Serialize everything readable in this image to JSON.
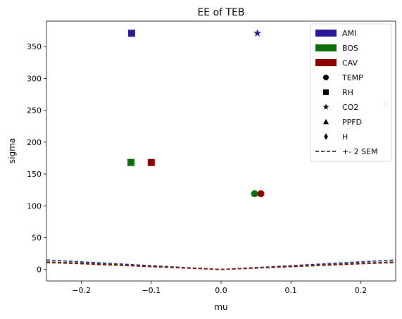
{
  "chart_data": {
    "type": "scatter",
    "title": "EE of TEB",
    "xlabel": "mu",
    "ylabel": "sigma",
    "xlim": [
      -0.25,
      0.25
    ],
    "ylim": [
      -18,
      390
    ],
    "xticks": [
      -0.2,
      -0.1,
      0.0,
      0.1,
      0.2
    ],
    "xtick_labels": [
      "−0.2",
      "−0.1",
      "0.0",
      "0.1",
      "0.2"
    ],
    "yticks": [
      0,
      50,
      100,
      150,
      200,
      250,
      300,
      350
    ],
    "ytick_labels": [
      "0",
      "50",
      "100",
      "150",
      "200",
      "250",
      "300",
      "350"
    ],
    "grid": false,
    "legend_position": "top-right",
    "groups": [
      {
        "name": "AMI",
        "color": "#2a1a9a"
      },
      {
        "name": "BOS",
        "color": "#0a6e0a"
      },
      {
        "name": "CAV",
        "color": "#8b0000"
      }
    ],
    "markers": [
      {
        "name": "TEMP",
        "shape": "circle"
      },
      {
        "name": "RH",
        "shape": "square"
      },
      {
        "name": "CO2",
        "shape": "star"
      },
      {
        "name": "PPFD",
        "shape": "triangle"
      },
      {
        "name": "H",
        "shape": "diamond"
      }
    ],
    "sem_label": "+- 2 SEM",
    "points": [
      {
        "group": "AMI",
        "marker": "RH",
        "x": -0.128,
        "y": 371
      },
      {
        "group": "AMI",
        "marker": "CO2",
        "x": 0.052,
        "y": 371
      },
      {
        "group": "AMI",
        "marker": "TEMP",
        "x": 0.236,
        "y": 261,
        "color": "#d6d2ec"
      },
      {
        "group": "BOS",
        "marker": "RH",
        "x": -0.129,
        "y": 168
      },
      {
        "group": "CAV",
        "marker": "RH",
        "x": -0.1,
        "y": 168
      },
      {
        "group": "BOS",
        "marker": "TEMP",
        "x": 0.048,
        "y": 119
      },
      {
        "group": "CAV",
        "marker": "TEMP",
        "x": 0.057,
        "y": 119
      }
    ],
    "sem_lines": [
      {
        "group": "AMI",
        "x": [
          -0.25,
          -0.2,
          -0.1,
          0.0,
          0.1,
          0.2,
          0.25
        ],
        "y": [
          15,
          12,
          6,
          0,
          6,
          12,
          15
        ]
      },
      {
        "group": "BOS",
        "x": [
          -0.25,
          -0.2,
          -0.1,
          0.0,
          0.1,
          0.2,
          0.25
        ],
        "y": [
          12,
          10,
          5,
          0,
          5,
          10,
          12
        ]
      },
      {
        "group": "CAV",
        "x": [
          -0.25,
          -0.2,
          -0.1,
          0.0,
          0.1,
          0.2,
          0.25
        ],
        "y": [
          11,
          9,
          4.5,
          0,
          4.5,
          9,
          11
        ]
      }
    ]
  }
}
